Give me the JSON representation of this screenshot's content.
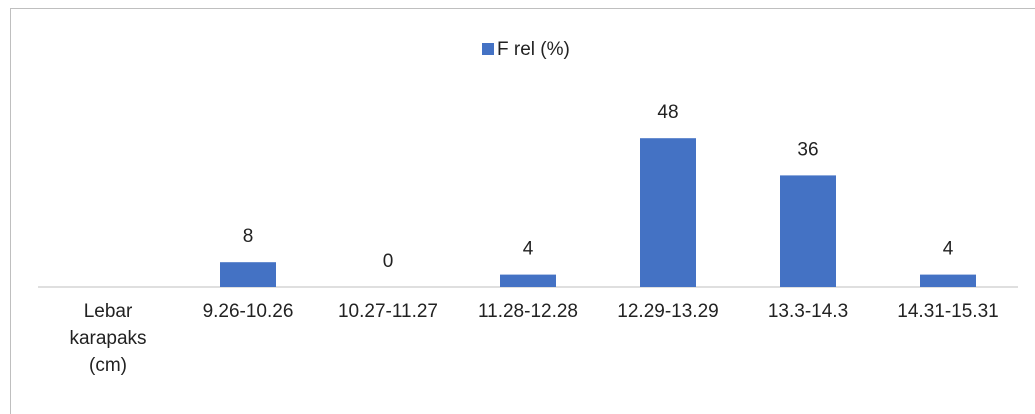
{
  "chart_data": {
    "type": "bar",
    "categories": [
      "Lebar karapaks (cm)",
      "9.26-10.26",
      "10.27-11.27",
      "11.28-12.28",
      "12.29-13.29",
      "13.3-14.3",
      "14.31-15.31"
    ],
    "series": [
      {
        "name": "F rel (%)",
        "color": "#4472c4",
        "values": [
          null,
          8,
          0,
          4,
          48,
          36,
          4
        ]
      }
    ],
    "ylim": [
      0,
      60
    ],
    "legend": "top",
    "data_labels": true
  }
}
